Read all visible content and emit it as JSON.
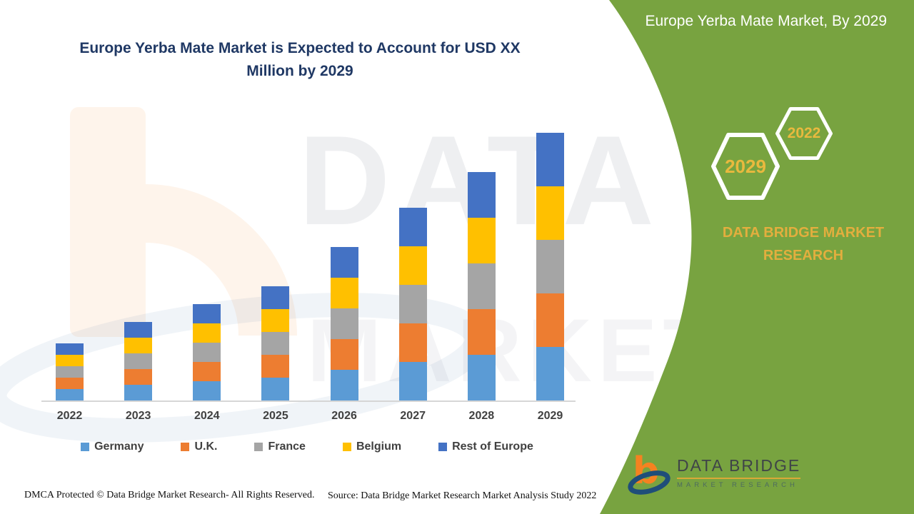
{
  "chart_title": {
    "line1": "Europe Yerba Mate Market is Expected to Account for USD XX",
    "line2": "Million by 2029"
  },
  "chart_data": {
    "type": "bar",
    "stacked": true,
    "title": "Europe Yerba Mate Market is Expected to Account for USD XX Million by 2029",
    "xlabel": "",
    "ylabel": "",
    "ylim": [
      0,
      390
    ],
    "grid": false,
    "legend_position": "bottom",
    "value_note": "absolute values not shown in source (USD XX Million); series heights estimated from pixels, equal stacked segments per year",
    "categories": [
      "2022",
      "2023",
      "2024",
      "2025",
      "2026",
      "2027",
      "2028",
      "2029"
    ],
    "series": [
      {
        "name": "Germany",
        "color": "#5B9BD5",
        "values": [
          16,
          22,
          27,
          32,
          43,
          54,
          64,
          75
        ]
      },
      {
        "name": "U.K.",
        "color": "#ED7D31",
        "values": [
          16,
          22,
          27,
          32,
          43,
          54,
          64,
          75
        ]
      },
      {
        "name": "France",
        "color": "#A5A5A5",
        "values": [
          16,
          22,
          27,
          32,
          43,
          54,
          64,
          75
        ]
      },
      {
        "name": "Belgium",
        "color": "#FFC000",
        "values": [
          16,
          22,
          27,
          32,
          43,
          54,
          64,
          75
        ]
      },
      {
        "name": "Rest of Europe",
        "color": "#4472C4",
        "values": [
          16,
          22,
          27,
          32,
          43,
          54,
          64,
          75
        ]
      }
    ]
  },
  "panel": {
    "title": "Europe Yerba Mate Market, By 2029",
    "badge_large": "2029",
    "badge_small": "2022",
    "brand_line1": "DATA BRIDGE MARKET",
    "brand_line2": "RESEARCH",
    "green_color": "#78A340",
    "gold_color": "#E3AE3E"
  },
  "logo": {
    "title": "DATA BRIDGE",
    "subtitle": "MARKET RESEARCH"
  },
  "watermark": {
    "line1": "DATA BRIDGE",
    "line2": "MARKET RESEARCH"
  },
  "footer": {
    "left": "DMCA Protected © Data Bridge Market Research- All Rights Reserved.",
    "right": "Source: Data Bridge Market Research Market Analysis Study 2022"
  }
}
